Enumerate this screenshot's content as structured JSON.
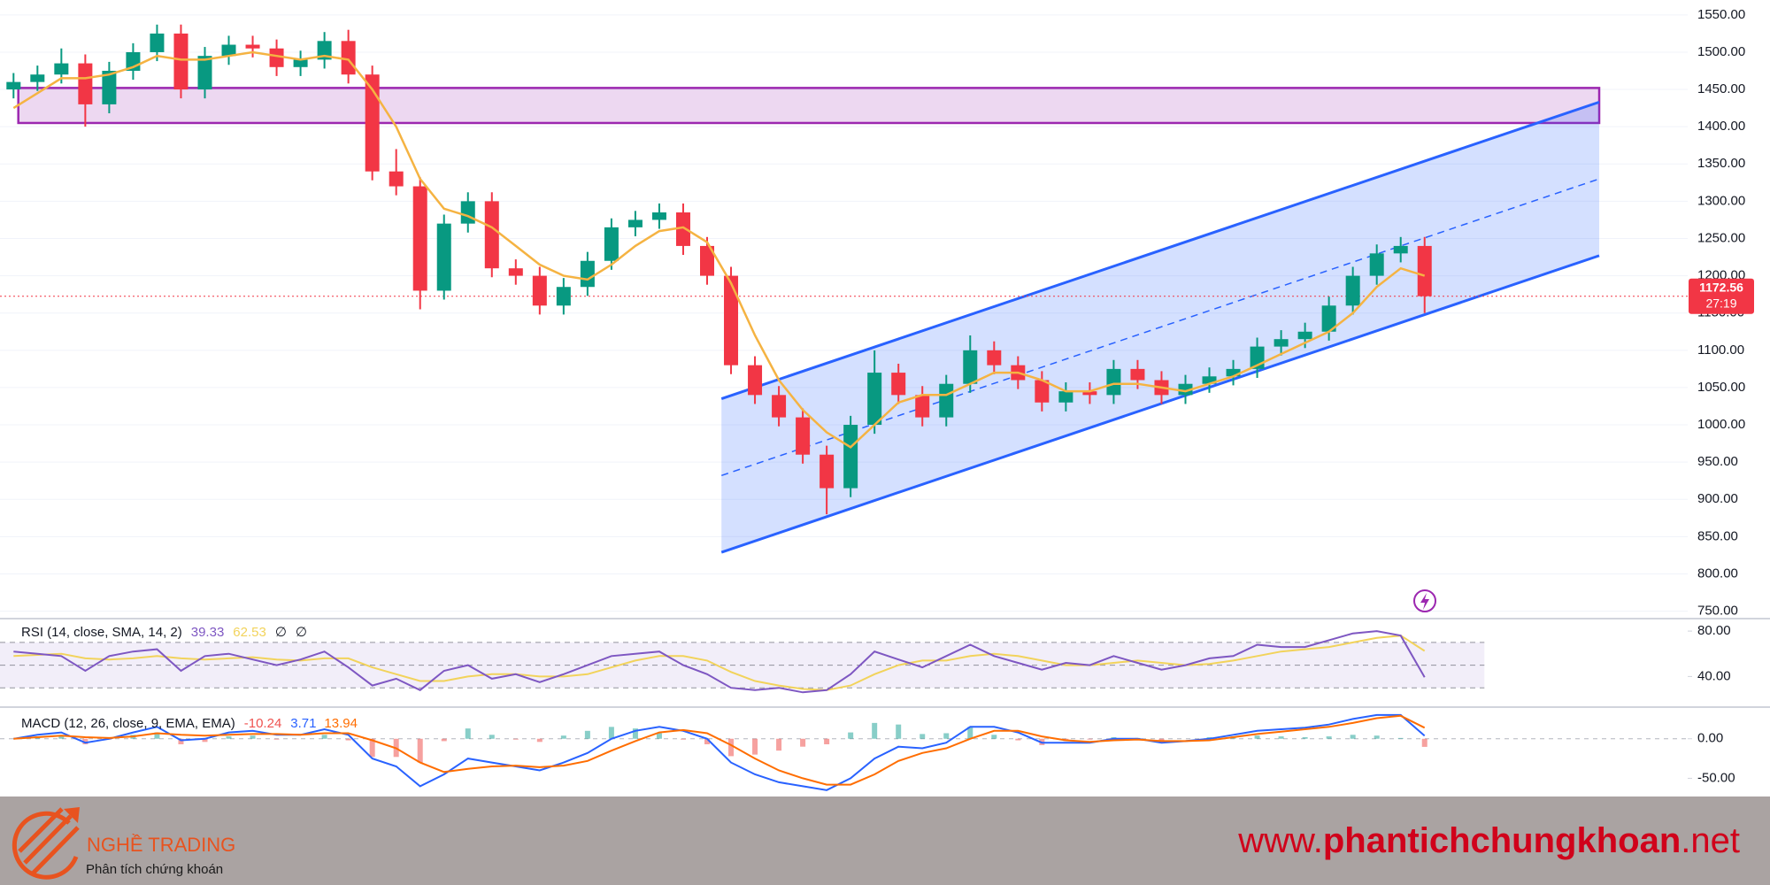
{
  "chart_data": [
    {
      "type": "candlestick",
      "open": [
        1450,
        1460,
        1470,
        1485,
        1430,
        1475,
        1500,
        1525,
        1450,
        1495,
        1510,
        1505,
        1480,
        1490,
        1515,
        1470,
        1340,
        1320,
        1180,
        1270,
        1300,
        1210,
        1200,
        1160,
        1185,
        1220,
        1265,
        1275,
        1285,
        1240,
        1200,
        1080,
        1040,
        1010,
        960,
        915,
        1000,
        1070,
        1040,
        1010,
        1055,
        1100,
        1080,
        1060,
        1030,
        1045,
        1040,
        1075,
        1060,
        1040,
        1055,
        1065,
        1075,
        1105,
        1115,
        1125,
        1160,
        1200,
        1230,
        1240
      ],
      "high": [
        1472,
        1482,
        1505,
        1497,
        1487,
        1512,
        1537,
        1537,
        1507,
        1522,
        1522,
        1517,
        1502,
        1527,
        1530,
        1482,
        1370,
        1332,
        1282,
        1312,
        1312,
        1222,
        1212,
        1197,
        1232,
        1277,
        1287,
        1297,
        1297,
        1252,
        1212,
        1092,
        1052,
        1022,
        972,
        1012,
        1100,
        1082,
        1052,
        1067,
        1120,
        1112,
        1092,
        1072,
        1057,
        1057,
        1087,
        1087,
        1072,
        1067,
        1077,
        1087,
        1117,
        1127,
        1137,
        1172,
        1212,
        1242,
        1252,
        1252
      ],
      "low": [
        1438,
        1448,
        1458,
        1400,
        1418,
        1463,
        1488,
        1438,
        1438,
        1483,
        1493,
        1468,
        1468,
        1478,
        1458,
        1328,
        1308,
        1155,
        1168,
        1258,
        1198,
        1188,
        1148,
        1148,
        1173,
        1208,
        1253,
        1263,
        1228,
        1188,
        1068,
        1028,
        998,
        948,
        880,
        903,
        988,
        1028,
        998,
        998,
        1043,
        1068,
        1048,
        1018,
        1018,
        1028,
        1028,
        1048,
        1028,
        1028,
        1043,
        1053,
        1063,
        1093,
        1103,
        1113,
        1148,
        1188,
        1218,
        1150
      ],
      "close": [
        1460,
        1470,
        1485,
        1430,
        1475,
        1500,
        1525,
        1450,
        1495,
        1510,
        1505,
        1480,
        1490,
        1515,
        1470,
        1340,
        1320,
        1180,
        1270,
        1300,
        1210,
        1200,
        1160,
        1185,
        1220,
        1265,
        1275,
        1285,
        1240,
        1200,
        1080,
        1040,
        1010,
        960,
        915,
        1000,
        1070,
        1040,
        1010,
        1055,
        1100,
        1080,
        1060,
        1030,
        1045,
        1040,
        1075,
        1060,
        1040,
        1055,
        1065,
        1075,
        1105,
        1115,
        1125,
        1160,
        1200,
        1230,
        1240,
        1172.56
      ],
      "up_color": "#089981",
      "down_color": "#f23645",
      "series": [
        {
          "color": "#f5b342",
          "values": [
            1425,
            1445,
            1465,
            1465,
            1470,
            1480,
            1495,
            1490,
            1490,
            1495,
            1500,
            1495,
            1490,
            1495,
            1490,
            1450,
            1400,
            1330,
            1290,
            1280,
            1265,
            1240,
            1215,
            1200,
            1195,
            1215,
            1240,
            1260,
            1265,
            1245,
            1190,
            1120,
            1060,
            1020,
            990,
            970,
            1000,
            1030,
            1040,
            1040,
            1055,
            1070,
            1070,
            1060,
            1045,
            1045,
            1055,
            1055,
            1050,
            1045,
            1055,
            1065,
            1080,
            1095,
            1110,
            1125,
            1150,
            1185,
            1210,
            1200
          ]
        }
      ],
      "countdown": "27:19",
      "zone": {
        "x": [
          0.2,
          66.3
        ],
        "y": [
          1405,
          1452
        ],
        "color": "#9c27b0"
      },
      "channel": {
        "x": [
          29.6,
          66.3
        ],
        "upper": [
          1035,
          1433
        ],
        "middle": [
          932,
          1330
        ],
        "lower": [
          829,
          1227
        ],
        "color": "#2962ff"
      },
      "xlim": [
        -0.566,
        70
      ],
      "ylim": [
        740,
        1570
      ],
      "yticks": [
        {
          "value": 750,
          "label": "750.00"
        },
        {
          "value": 800,
          "label": "800.00"
        },
        {
          "value": 850,
          "label": "850.00"
        },
        {
          "value": 900,
          "label": "900.00"
        },
        {
          "value": 950,
          "label": "950.00"
        },
        {
          "value": 1000,
          "label": "1000.00"
        },
        {
          "value": 1050,
          "label": "1050.00"
        },
        {
          "value": 1100,
          "label": "1100.00"
        },
        {
          "value": 1150,
          "label": "1150.00"
        },
        {
          "value": 1200,
          "label": "1200.00"
        },
        {
          "value": 1250,
          "label": "1250.00"
        },
        {
          "value": 1300,
          "label": "1300.00"
        },
        {
          "value": 1350,
          "label": "1350.00"
        },
        {
          "value": 1400,
          "label": "1400.00"
        },
        {
          "value": 1450,
          "label": "1450.00"
        },
        {
          "value": 1500,
          "label": "1500.00"
        },
        {
          "value": 1550,
          "label": "1550.00"
        }
      ],
      "grid": true
    },
    {
      "type": "line",
      "title": "RSI (14, close, SMA, 14, 2)",
      "na_labels": [
        "∅",
        "∅"
      ],
      "series": [
        {
          "color": "#7e57c2",
          "values": [
            62,
            60,
            58,
            45,
            58,
            62,
            64,
            45,
            58,
            60,
            55,
            50,
            55,
            62,
            48,
            32,
            38,
            28,
            45,
            50,
            38,
            42,
            35,
            42,
            50,
            58,
            60,
            62,
            50,
            42,
            30,
            28,
            30,
            26,
            28,
            42,
            62,
            55,
            48,
            58,
            68,
            58,
            52,
            46,
            52,
            50,
            58,
            52,
            46,
            50,
            56,
            58,
            68,
            66,
            66,
            72,
            78,
            80,
            76,
            39.33
          ]
        },
        {
          "color": "#f2d35b",
          "values": [
            58,
            59,
            60,
            56,
            55,
            56,
            58,
            56,
            55,
            56,
            57,
            55,
            54,
            56,
            56,
            48,
            42,
            36,
            36,
            40,
            42,
            42,
            40,
            40,
            42,
            48,
            54,
            58,
            58,
            54,
            44,
            36,
            32,
            29,
            28,
            32,
            42,
            50,
            54,
            54,
            58,
            60,
            58,
            54,
            50,
            50,
            52,
            54,
            52,
            50,
            51,
            54,
            58,
            62,
            64,
            66,
            70,
            74,
            76,
            62.53
          ]
        }
      ],
      "levels": [
        70,
        50,
        30
      ],
      "xlim": [
        -0.566,
        70
      ],
      "ylim": [
        13,
        91
      ],
      "yticks": [
        {
          "value": 40,
          "label": "40.00"
        },
        {
          "value": 80,
          "label": "80.00"
        }
      ]
    },
    {
      "type": "macd",
      "title": "MACD (12, 26, close, 9, EMA, EMA)",
      "histogram": {
        "up_color": "#26a69a",
        "down_color": "#ef5350",
        "values": [
          0,
          3,
          4,
          -7,
          -1,
          5,
          8,
          -7,
          -4,
          3,
          4,
          -1,
          0,
          5,
          -2,
          -23,
          -23,
          -30,
          -3,
          13,
          5,
          -1,
          -4,
          4,
          10,
          15,
          13,
          7,
          -1,
          -7,
          -22,
          -20,
          -15,
          -10,
          -7,
          8,
          20,
          18,
          6,
          7,
          15,
          5,
          -2,
          -8,
          -3,
          -1,
          2,
          1,
          -2,
          0,
          2,
          3,
          4,
          3,
          2,
          3,
          5,
          4,
          1,
          -10.24
        ]
      },
      "series": [
        {
          "color": "#2962ff",
          "values": [
            0,
            5,
            8,
            -5,
            0,
            8,
            15,
            -2,
            0,
            8,
            10,
            5,
            5,
            12,
            5,
            -25,
            -35,
            -60,
            -45,
            -25,
            -30,
            -35,
            -40,
            -30,
            -18,
            0,
            10,
            15,
            10,
            0,
            -30,
            -45,
            -55,
            -60,
            -65,
            -50,
            -25,
            -10,
            -12,
            -5,
            15,
            15,
            8,
            -5,
            -5,
            -5,
            0,
            0,
            -5,
            -3,
            0,
            5,
            10,
            12,
            14,
            18,
            25,
            30,
            30,
            3.71
          ]
        },
        {
          "color": "#ff6d00",
          "values": [
            0,
            2,
            4,
            2,
            1,
            3,
            7,
            5,
            4,
            5,
            6,
            6,
            5,
            7,
            7,
            -2,
            -12,
            -30,
            -42,
            -38,
            -35,
            -34,
            -36,
            -34,
            -28,
            -15,
            -3,
            8,
            11,
            7,
            -8,
            -25,
            -40,
            -50,
            -58,
            -58,
            -45,
            -28,
            -18,
            -12,
            0,
            10,
            10,
            3,
            -2,
            -4,
            -2,
            -1,
            -3,
            -3,
            -2,
            2,
            6,
            9,
            12,
            15,
            20,
            26,
            29,
            13.94
          ]
        }
      ],
      "xlim": [
        -0.566,
        70
      ],
      "ylim": [
        -73,
        40
      ],
      "yticks": [
        {
          "value": -50,
          "label": "-50.00"
        },
        {
          "value": 0,
          "label": "0.00"
        }
      ]
    }
  ],
  "footer": {
    "brand": "NGHỀ TRADING",
    "tagline": "Phân tích chứng khoán",
    "site": [
      "www.",
      "phantichchungkhoan",
      ".net"
    ]
  }
}
